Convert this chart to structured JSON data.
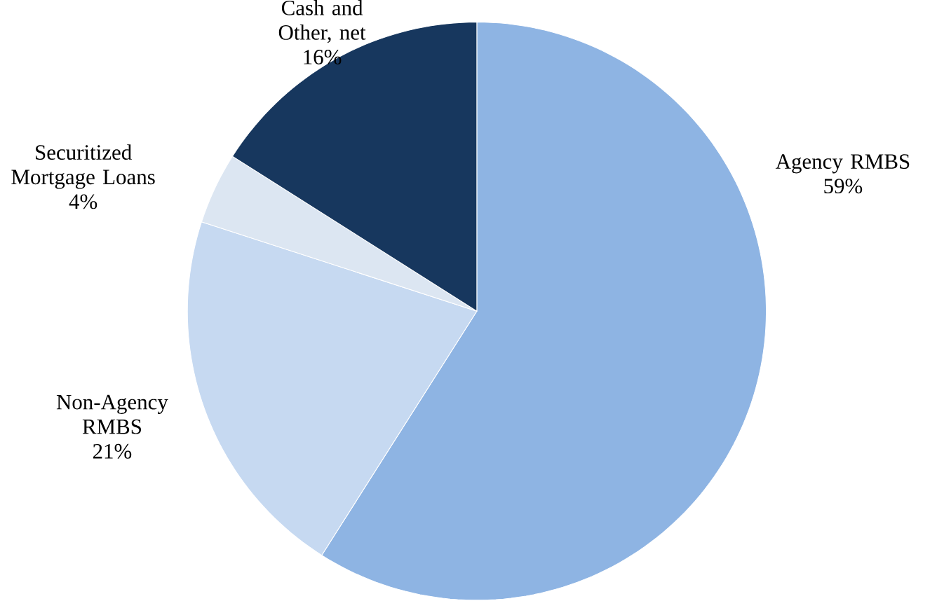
{
  "chart_data": {
    "type": "pie",
    "categories": [
      "Agency RMBS",
      "Non-Agency RMBS",
      "Securitized Mortgage Loans",
      "Cash and Other, net"
    ],
    "values": [
      59,
      21,
      4,
      16
    ],
    "value_labels": [
      "59%",
      "21%",
      "4%",
      "16%"
    ],
    "colors": [
      "#8eb4e3",
      "#c6d9f1",
      "#dce6f2",
      "#17375e"
    ]
  }
}
